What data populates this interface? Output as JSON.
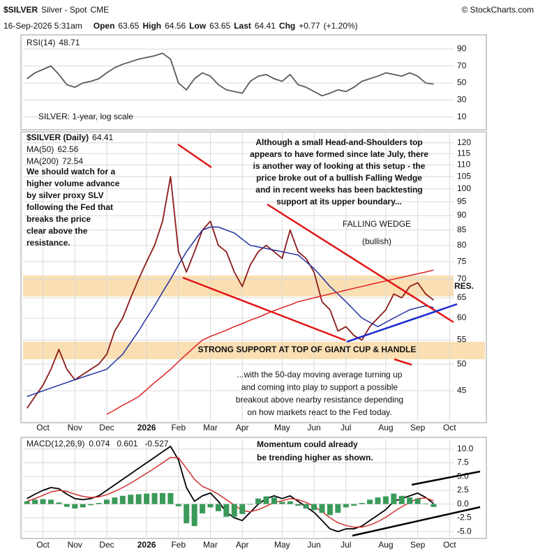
{
  "header": {
    "symbol": "$SILVER",
    "name": "Silver - Spot",
    "exchange": "CME",
    "source": "© StockCharts.com",
    "date": "16-Sep-2026 5:31am",
    "quote": [
      {
        "label": "Open",
        "value": 63.65
      },
      {
        "label": "High",
        "value": 64.56
      },
      {
        "label": "Low",
        "value": 63.65
      },
      {
        "label": "Last",
        "value": 64.41
      },
      {
        "label": "Chg",
        "value": "+0.77",
        "pct": "(+1.20%)"
      }
    ]
  },
  "chart_data": [
    {
      "type": "line",
      "annotations": {
        "subtitle": "SILVER: 1-year, log scale"
      },
      "series": [
        {
          "name": "RSI(14)",
          "color": "#5a5a5a",
          "values": [
            55,
            62,
            66,
            70,
            60,
            48,
            45,
            50,
            52,
            55,
            62,
            68,
            72,
            75,
            78,
            80,
            82,
            85,
            78,
            50,
            42,
            55,
            62,
            58,
            48,
            42,
            40,
            38,
            52,
            58,
            60,
            55,
            52,
            60,
            48,
            45,
            40,
            35,
            38,
            42,
            40,
            45,
            52,
            55,
            58,
            62,
            60,
            58,
            62,
            58,
            50,
            48.71,
            null,
            null
          ]
        }
      ],
      "ylim": [
        0,
        100
      ],
      "yticks": [
        10,
        30,
        50,
        70,
        90
      ],
      "grid": true
    },
    {
      "type": "line",
      "log": true,
      "categories": [
        null,
        null,
        "Oct",
        null,
        null,
        null,
        "Nov",
        null,
        null,
        null,
        "Dec",
        null,
        null,
        null,
        null,
        "2026",
        null,
        null,
        null,
        "Feb",
        null,
        null,
        null,
        "Mar",
        null,
        null,
        null,
        "Apr",
        null,
        null,
        null,
        null,
        "May",
        null,
        null,
        null,
        "Jun",
        null,
        null,
        null,
        "Jul",
        null,
        null,
        null,
        null,
        "Aug",
        null,
        null,
        null,
        "Sep",
        null,
        null,
        null,
        "Oct"
      ],
      "series": [
        {
          "name": "$SILVER (Daily)",
          "color": "#8b1a1a",
          "values": [
            42,
            44,
            46,
            49,
            53,
            49,
            47,
            48,
            49,
            50,
            52,
            57,
            60,
            65,
            70,
            75,
            80,
            88,
            105,
            78,
            72,
            78,
            85,
            88,
            80,
            78,
            72,
            68,
            74,
            78,
            80,
            78,
            76,
            85,
            78,
            76,
            72,
            64,
            62,
            57,
            58,
            56,
            55,
            58,
            60,
            62,
            66,
            65,
            68,
            69,
            66,
            64.41,
            null,
            null
          ]
        },
        {
          "name": "MA(50)",
          "color": "#2030a0",
          "values": [
            44,
            44.5,
            45,
            45.5,
            46,
            46.5,
            47,
            47.5,
            48,
            48.5,
            49,
            50.5,
            52,
            54.5,
            57,
            60,
            63,
            66.5,
            70,
            74,
            78,
            81.5,
            85,
            86,
            86,
            85,
            84,
            82,
            80,
            79.5,
            79,
            78.5,
            78,
            77.5,
            77,
            75,
            73,
            70.5,
            68,
            66,
            64,
            62,
            60,
            59,
            58,
            59,
            60,
            61,
            62,
            62.5,
            63,
            62.56,
            null,
            null
          ]
        },
        {
          "name": "MA(200)",
          "color": "#e02020",
          "values": [
            null,
            null,
            null,
            null,
            null,
            null,
            null,
            null,
            null,
            null,
            41,
            41.7,
            42.5,
            43.2,
            44,
            45.2,
            46.5,
            47.7,
            49,
            50.5,
            52,
            53.5,
            55,
            55.8,
            56.5,
            57.2,
            58,
            58.7,
            59.5,
            60.2,
            61,
            61.8,
            62.5,
            63.2,
            64,
            64.5,
            65,
            65.5,
            66,
            66.5,
            67,
            67.5,
            68,
            68.5,
            69,
            69.5,
            70,
            70.5,
            71,
            71.5,
            72,
            72.54,
            null,
            null
          ]
        }
      ],
      "ylim": [
        40,
        125
      ],
      "yticks": [
        45,
        50,
        55,
        60,
        65,
        70,
        75,
        80,
        85,
        90,
        95,
        100,
        105,
        110,
        115,
        120
      ],
      "grid": true,
      "annotations": {
        "left_note": [
          "We should watch for a",
          "higher volume advance",
          "by silver proxy SLV",
          "following the Fed that",
          "breaks the price",
          "clear above the",
          "resistance."
        ],
        "top_note": [
          "Although a small Head-and-Shoulders top",
          "appears to have formed since late July, there",
          "is another way of looking at this setup - the",
          "price broke out of a bullish Falling Wedge",
          "and in recent weeks has been backtesting",
          "support at its upper boundary..."
        ],
        "wedge": [
          "FALLING WEDGE",
          "(bullish)"
        ],
        "resistance": "RES.",
        "support": "STRONG SUPPORT AT TOP OF GIANT CUP & HANDLE",
        "bottom_note": [
          "...with the 50-day moving average turning up",
          "and coming into play to support a possible",
          "breakout above nearby resistance depending",
          "on how markets react to the Fed today."
        ]
      }
    },
    {
      "type": "line",
      "categories": [
        null,
        null,
        "Oct",
        null,
        null,
        null,
        "Nov",
        null,
        null,
        null,
        "Dec",
        null,
        null,
        null,
        null,
        "2026",
        null,
        null,
        null,
        "Feb",
        null,
        null,
        null,
        "Mar",
        null,
        null,
        null,
        "Apr",
        null,
        null,
        null,
        null,
        "May",
        null,
        null,
        null,
        "Jun",
        null,
        null,
        null,
        "Jul",
        null,
        null,
        null,
        null,
        "Aug",
        null,
        null,
        null,
        "Sep",
        null,
        null,
        null,
        "Oct"
      ],
      "series": [
        {
          "name": "MACD(12,26,9)",
          "color": "#000000",
          "values": [
            1.0,
            1.8,
            2.5,
            3.0,
            2.8,
            1.8,
            1.0,
            0.8,
            1.0,
            1.5,
            2.5,
            3.5,
            4.5,
            5.5,
            6.5,
            7.5,
            8.5,
            9.5,
            10.5,
            8.0,
            3.0,
            0.5,
            1.5,
            2.0,
            0.5,
            -1.5,
            -2.5,
            -3.0,
            -1.5,
            0.0,
            1.0,
            1.5,
            1.0,
            1.5,
            0.5,
            -0.5,
            -1.5,
            -3.0,
            -4.5,
            -5.0,
            -4.5,
            -4.5,
            -4.0,
            -3.0,
            -2.0,
            -1.0,
            0.5,
            1.0,
            1.5,
            2.0,
            1.2,
            0.074,
            null,
            null
          ]
        },
        {
          "color": "#d03030",
          "values": [
            0.5,
            1.0,
            1.6,
            2.2,
            2.5,
            2.3,
            1.8,
            1.4,
            1.2,
            1.3,
            1.7,
            2.3,
            3.0,
            3.8,
            4.7,
            5.6,
            6.5,
            7.5,
            8.5,
            8.4,
            6.5,
            4.5,
            3.2,
            2.6,
            1.8,
            0.8,
            -0.2,
            -1.2,
            -1.4,
            -1.0,
            -0.4,
            0.3,
            0.6,
            1.0,
            0.8,
            0.3,
            -0.4,
            -1.4,
            -2.5,
            -3.4,
            -3.9,
            -4.2,
            -4.2,
            -3.8,
            -3.2,
            -2.4,
            -1.4,
            -0.5,
            0.3,
            1.0,
            1.1,
            0.601,
            null,
            null
          ]
        },
        {
          "color": "#3a9a5a",
          "style": "bar",
          "values": [
            0.5,
            0.8,
            0.9,
            0.8,
            0.3,
            -0.5,
            -0.8,
            -0.6,
            -0.2,
            0.2,
            0.8,
            1.2,
            1.5,
            1.7,
            1.8,
            1.9,
            2.0,
            2.0,
            2.0,
            -0.4,
            -3.5,
            -4.0,
            -1.7,
            -0.6,
            -1.3,
            -2.3,
            -2.3,
            -1.8,
            -0.1,
            1.0,
            1.4,
            1.2,
            0.4,
            0.5,
            -0.3,
            -0.8,
            -1.1,
            -1.6,
            -2.0,
            -1.6,
            -0.6,
            -0.3,
            0.2,
            0.8,
            1.2,
            1.4,
            1.9,
            1.5,
            1.2,
            1.0,
            0.1,
            -0.527,
            null,
            null
          ]
        }
      ],
      "ylim": [
        -6,
        11.5
      ],
      "yticks": [
        {
          "value": -5,
          "label": "-5.0"
        },
        -2.5,
        {
          "value": 0,
          "label": "0.0"
        },
        2.5,
        {
          "value": 5,
          "label": "5.0"
        },
        7.5,
        {
          "value": 10,
          "label": "10.0"
        }
      ],
      "grid": true,
      "annotations": {
        "note": [
          "Momentum could already",
          "be trending higher as shown."
        ]
      }
    }
  ]
}
